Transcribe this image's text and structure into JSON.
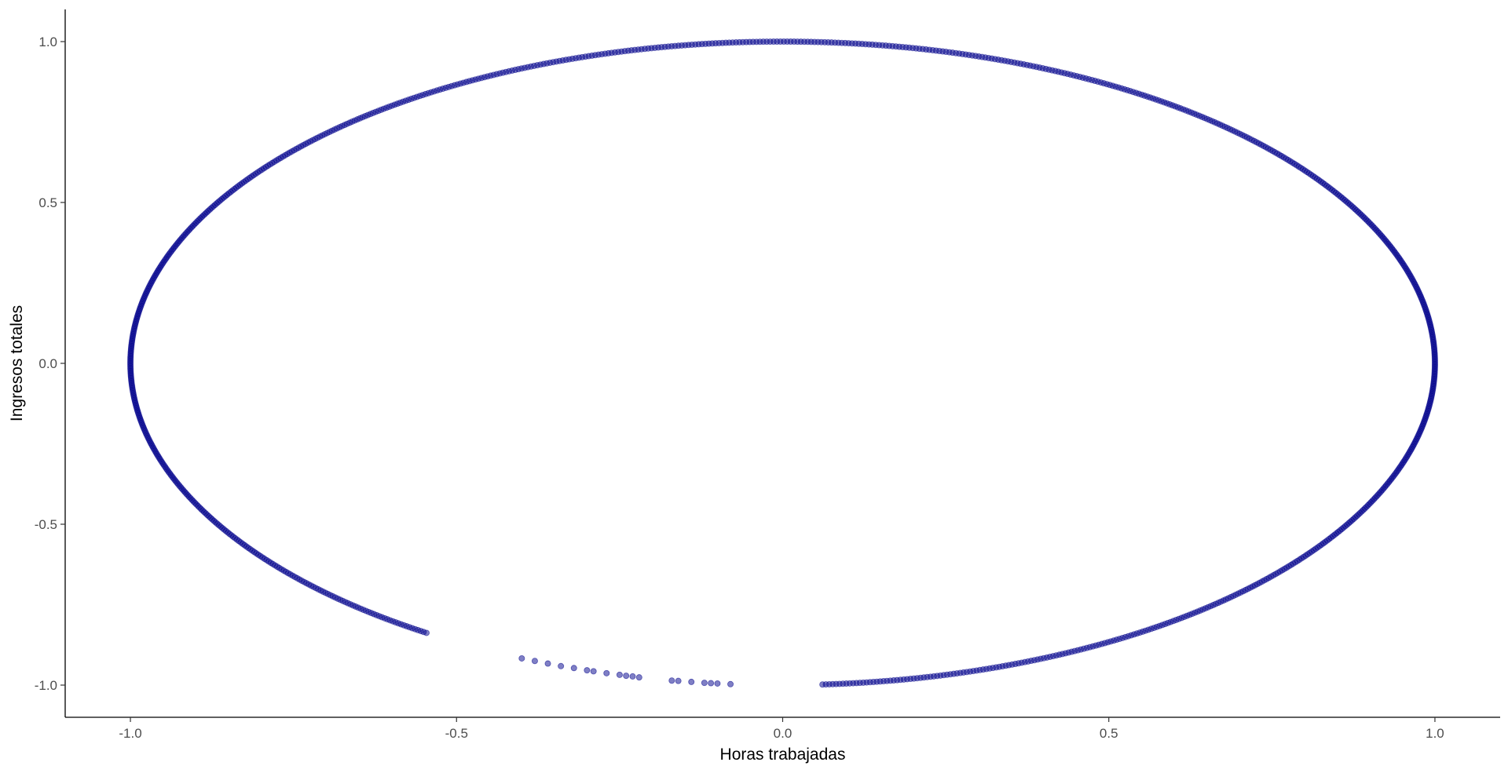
{
  "chart_data": {
    "type": "scatter",
    "title": "",
    "xlabel": "Horas trabajadas",
    "ylabel": "Ingresos totales",
    "xlim": [
      -1.1,
      1.1
    ],
    "ylim": [
      -1.1,
      1.1
    ],
    "x_ticks": [
      -1.0,
      -0.5,
      0.0,
      0.5,
      1.0
    ],
    "x_tick_labels": [
      "-1.0",
      "-0.5",
      "0.0",
      "0.5",
      "1.0"
    ],
    "y_ticks": [
      -1.0,
      -0.5,
      0.0,
      0.5,
      1.0
    ],
    "y_tick_labels": [
      "-1.0",
      "-0.5",
      "0.0",
      "0.5",
      "1.0"
    ],
    "grid": false,
    "legend": "none",
    "point_color": "#00008B",
    "point_opacity": 0.5,
    "point_groups": [
      {
        "name": "unit-circle-arc",
        "angle_start_deg": -86.5,
        "angle_end_deg": 237,
        "angle_step_deg": 0.3
      },
      {
        "name": "sparse-lower-left",
        "x": [
          -0.4,
          -0.38,
          -0.36,
          -0.34,
          -0.32,
          -0.3,
          -0.29,
          -0.27,
          -0.25,
          -0.24,
          -0.23,
          -0.22,
          -0.17,
          -0.16,
          -0.14,
          -0.12,
          -0.11,
          -0.1,
          -0.08
        ],
        "y": [
          -0.917,
          -0.925,
          -0.933,
          -0.941,
          -0.947,
          -0.954,
          -0.957,
          -0.963,
          -0.968,
          -0.971,
          -0.973,
          -0.976,
          -0.986,
          -0.987,
          -0.99,
          -0.993,
          -0.994,
          -0.995,
          -0.997
        ]
      }
    ]
  }
}
